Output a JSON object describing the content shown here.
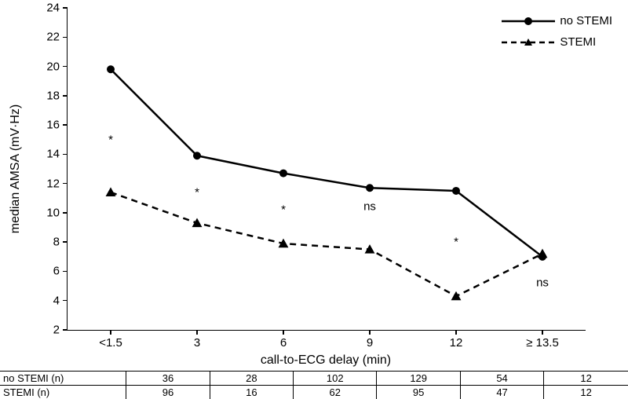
{
  "chart": {
    "type": "line",
    "y_axis": {
      "title": "median AMSA (mV·Hz)",
      "min": 2,
      "max": 24,
      "ticks": [
        2,
        4,
        6,
        8,
        10,
        12,
        14,
        16,
        18,
        20,
        22,
        24
      ],
      "title_fontsize": 16,
      "label_fontsize": 15
    },
    "x_axis": {
      "title": "call-to-ECG delay (min)",
      "categories": [
        "<1.5",
        "3",
        "6",
        "9",
        "12",
        "≥ 13.5"
      ],
      "title_fontsize": 16,
      "label_fontsize": 15
    },
    "series": [
      {
        "name": "no STEMI",
        "values": [
          19.8,
          13.9,
          12.7,
          11.7,
          11.5,
          7.0
        ],
        "color": "#000000",
        "line_style": "solid",
        "line_width": 2.5,
        "marker": "circle",
        "marker_size": 8
      },
      {
        "name": "STEMI",
        "values": [
          11.4,
          9.3,
          7.9,
          7.5,
          4.3,
          7.2
        ],
        "color": "#000000",
        "line_style": "dashed",
        "line_width": 2.5,
        "marker": "triangle",
        "marker_size": 9
      }
    ],
    "annotations": [
      {
        "text": "*",
        "x_index": 0,
        "y": 15
      },
      {
        "text": "*",
        "x_index": 1,
        "y": 11.4
      },
      {
        "text": "*",
        "x_index": 2,
        "y": 10.2
      },
      {
        "text": "ns",
        "x_index": 3,
        "y": 10.4
      },
      {
        "text": "*",
        "x_index": 4,
        "y": 8.0
      },
      {
        "text": "ns",
        "x_index": 5,
        "y": 5.2
      }
    ],
    "background_color": "#ffffff"
  },
  "legend": {
    "items": [
      {
        "label": "no STEMI",
        "line_style": "solid",
        "marker": "circle"
      },
      {
        "label": "STEMI",
        "line_style": "dashed",
        "marker": "triangle"
      }
    ]
  },
  "table": {
    "rows": [
      {
        "label": "no STEMI (n)",
        "values": [
          "36",
          "28",
          "102",
          "129",
          "54",
          "12"
        ]
      },
      {
        "label": "STEMI (n)",
        "values": [
          "96",
          "16",
          "62",
          "95",
          "47",
          "12"
        ]
      }
    ],
    "col_widths_pct": [
      20.1,
      13.3,
      13.3,
      13.3,
      13.3,
      13.3,
      13.4
    ]
  }
}
